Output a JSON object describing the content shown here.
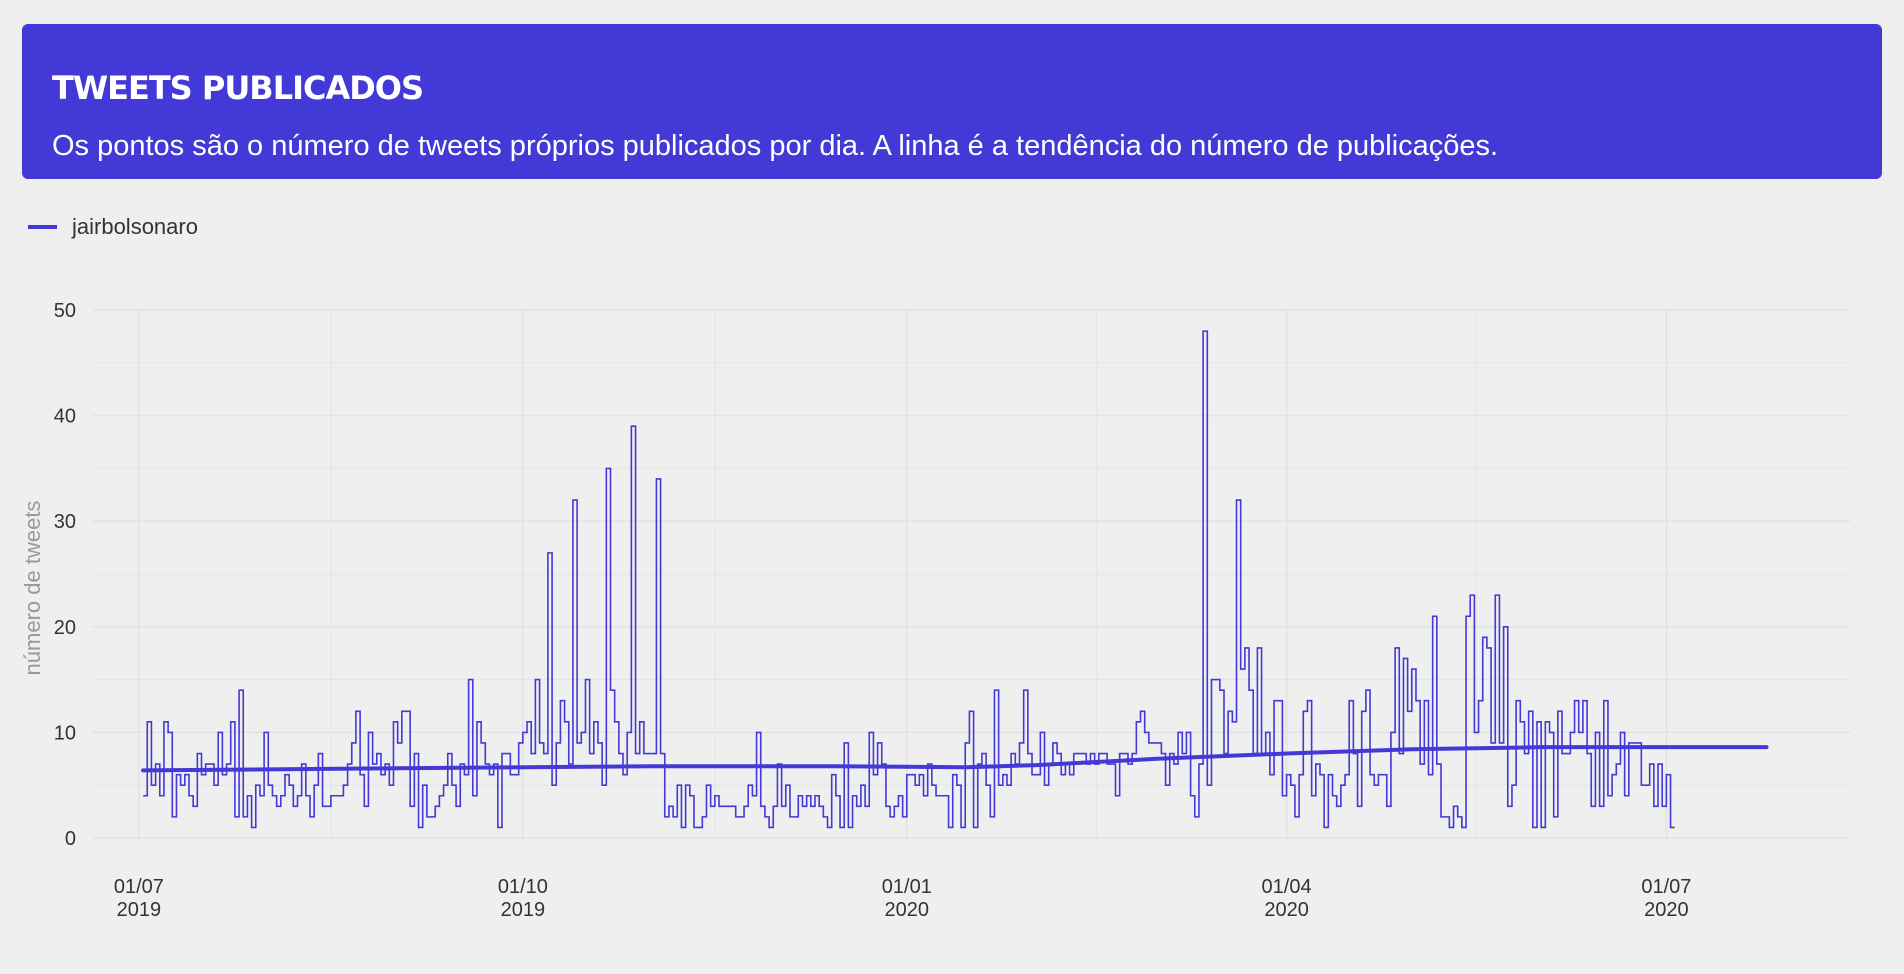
{
  "header": {
    "title": "TWEETS PUBLICADOS",
    "subtitle": "Os pontos são o número de tweets próprios publicados por dia. A linha é a tendência do número de publicações."
  },
  "colors": {
    "accent": "#4339d6",
    "background": "#efefef",
    "grid": "#e2e2e2"
  },
  "chart_data": {
    "type": "line",
    "title": "TWEETS PUBLICADOS",
    "ylabel": "número de tweets",
    "xlabel": "",
    "ylim": [
      0,
      50
    ],
    "xlim": [
      "2019-06-20",
      "2020-08-14"
    ],
    "grid": true,
    "legend_position": "top-left",
    "y_ticks": [
      0,
      10,
      20,
      30,
      40,
      50
    ],
    "x_ticks": [
      {
        "date": "2019-07-01",
        "line1": "01/07",
        "line2": "2019"
      },
      {
        "date": "2019-10-01",
        "line1": "01/10",
        "line2": "2019"
      },
      {
        "date": "2020-01-01",
        "line1": "01/01",
        "line2": "2020"
      },
      {
        "date": "2020-04-01",
        "line1": "01/04",
        "line2": "2020"
      },
      {
        "date": "2020-07-01",
        "line1": "01/07",
        "line2": "2020"
      }
    ],
    "series": [
      {
        "name": "jairbolsonaro",
        "kind": "daily",
        "start_date": "2019-07-02",
        "values": [
          4,
          11,
          5,
          7,
          4,
          11,
          10,
          2,
          6,
          5,
          6,
          4,
          3,
          8,
          6,
          7,
          7,
          5,
          10,
          6,
          7,
          11,
          2,
          14,
          2,
          4,
          1,
          5,
          4,
          10,
          5,
          4,
          3,
          4,
          6,
          5,
          3,
          4,
          7,
          4,
          2,
          5,
          8,
          3,
          3,
          4,
          4,
          4,
          5,
          7,
          9,
          12,
          6,
          3,
          10,
          7,
          8,
          6,
          7,
          5,
          11,
          9,
          12,
          12,
          3,
          8,
          1,
          5,
          2,
          2,
          3,
          4,
          5,
          8,
          5,
          3,
          7,
          6,
          15,
          4,
          11,
          9,
          7,
          6,
          7,
          1,
          8,
          8,
          6,
          6,
          9,
          10,
          11,
          8,
          15,
          9,
          8,
          27,
          5,
          9,
          13,
          11,
          7,
          32,
          9,
          10,
          15,
          8,
          11,
          9,
          5,
          35,
          14,
          11,
          8,
          6,
          10,
          39,
          8,
          11,
          8,
          8,
          8,
          34,
          8,
          2,
          3,
          2,
          5,
          1,
          5,
          4,
          1,
          1,
          2,
          5,
          3,
          4,
          3,
          3,
          3,
          3,
          2,
          2,
          3,
          5,
          4,
          10,
          3,
          2,
          1,
          3,
          7,
          3,
          5,
          2,
          2,
          4,
          3,
          4,
          3,
          4,
          3,
          2,
          1,
          6,
          4,
          1,
          9,
          1,
          4,
          3,
          5,
          3,
          10,
          6,
          9,
          7,
          3,
          2,
          3,
          4,
          2,
          6,
          6,
          5,
          6,
          4,
          7,
          5,
          4,
          4,
          4,
          1,
          6,
          5,
          1,
          9,
          12,
          1,
          7,
          8,
          5,
          2,
          14,
          5,
          6,
          5,
          8,
          7,
          9,
          14,
          8,
          6,
          6,
          10,
          5,
          7,
          9,
          8,
          6,
          7,
          6,
          8,
          8,
          8,
          7,
          8,
          7,
          8,
          8,
          7,
          7,
          4,
          8,
          8,
          7,
          8,
          11,
          12,
          10,
          9,
          9,
          9,
          8,
          5,
          8,
          7,
          10,
          8,
          10,
          4,
          2,
          7,
          48,
          5,
          15,
          15,
          14,
          8,
          12,
          11,
          32,
          16,
          18,
          14,
          8,
          18,
          8,
          10,
          6,
          13,
          13,
          4,
          6,
          5,
          2,
          6,
          12,
          13,
          4,
          7,
          6,
          1,
          6,
          4,
          3,
          5,
          6,
          13,
          8,
          3,
          12,
          14,
          6,
          5,
          6,
          6,
          3,
          10,
          18,
          8,
          17,
          12,
          16,
          13,
          7,
          13,
          6,
          21,
          7,
          2,
          2,
          1,
          3,
          2,
          1,
          21,
          23,
          10,
          13,
          19,
          18,
          9,
          23,
          9,
          20,
          3,
          5,
          13,
          11,
          8,
          12,
          1,
          11,
          1,
          11,
          10,
          2,
          12,
          8,
          8,
          10,
          13,
          10,
          13,
          8,
          3,
          10,
          3,
          13,
          4,
          6,
          7,
          10,
          4,
          9,
          9,
          9,
          5,
          5,
          7,
          3,
          7,
          3,
          6,
          1
        ]
      },
      {
        "name": "jairbolsonaro (tendência)",
        "kind": "trend",
        "points": [
          {
            "date": "2019-07-02",
            "value": 6.4
          },
          {
            "date": "2019-09-01",
            "value": 6.6
          },
          {
            "date": "2019-11-01",
            "value": 6.8
          },
          {
            "date": "2019-12-15",
            "value": 6.8
          },
          {
            "date": "2020-01-15",
            "value": 6.7
          },
          {
            "date": "2020-02-01",
            "value": 6.9
          },
          {
            "date": "2020-03-01",
            "value": 7.5
          },
          {
            "date": "2020-04-01",
            "value": 8.0
          },
          {
            "date": "2020-05-01",
            "value": 8.4
          },
          {
            "date": "2020-06-01",
            "value": 8.6
          },
          {
            "date": "2020-07-25",
            "value": 8.6
          }
        ]
      }
    ]
  }
}
